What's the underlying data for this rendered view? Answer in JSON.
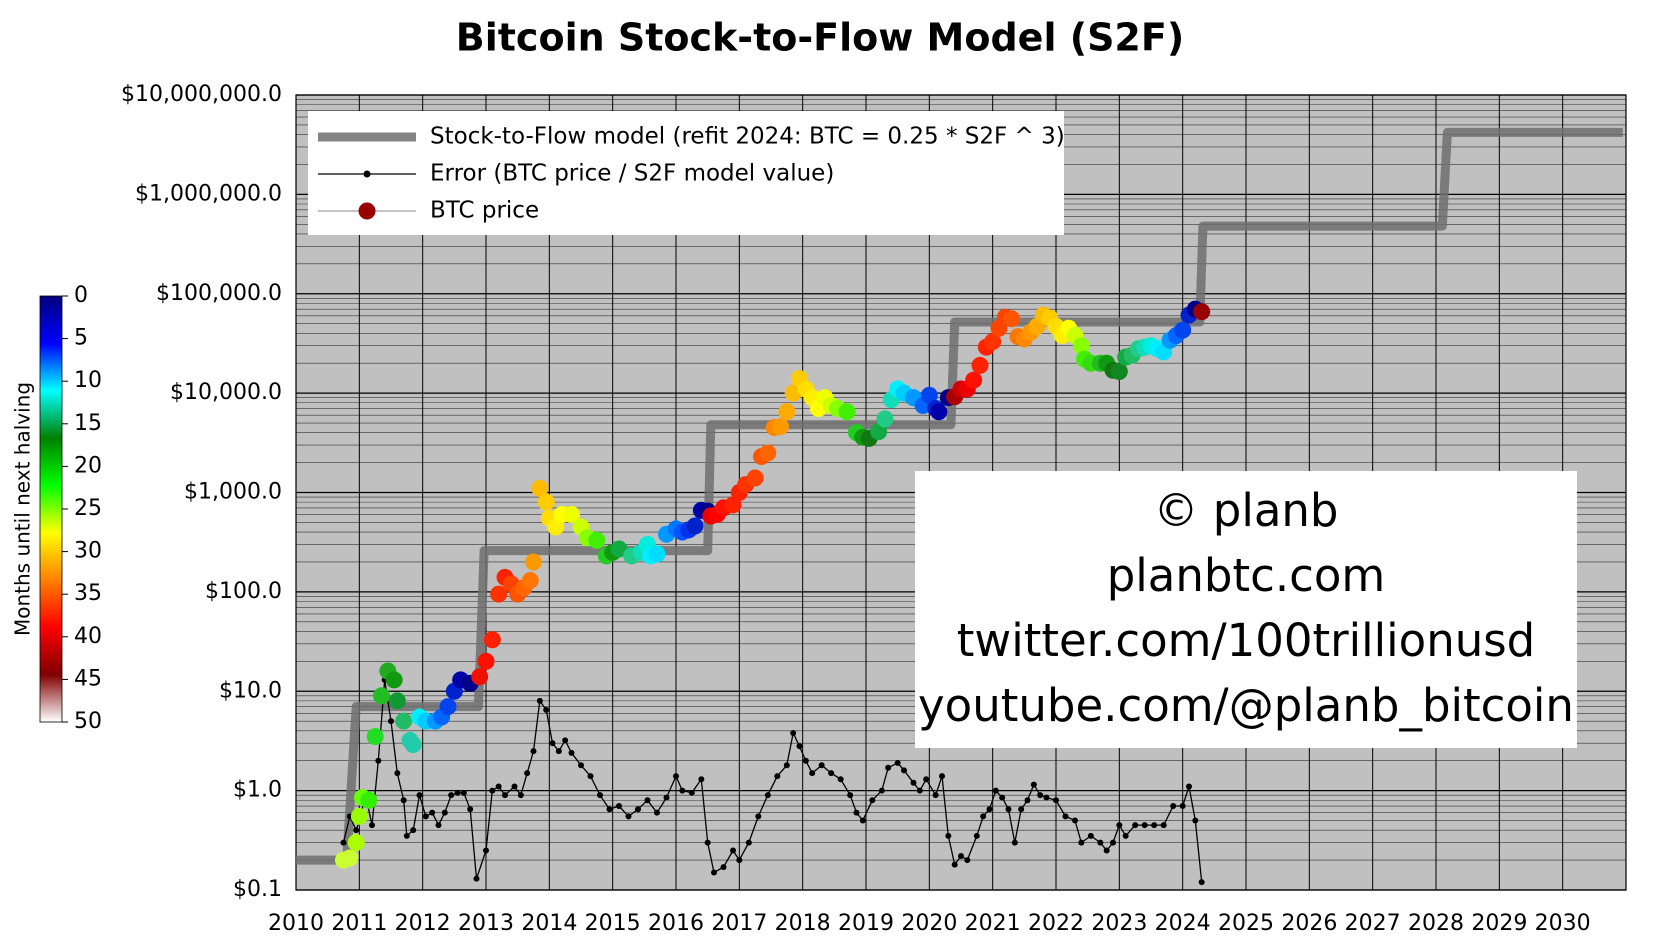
{
  "chart_data": {
    "type": "line",
    "title": "Bitcoin Stock-to-Flow Model (S2F)",
    "log_y": true,
    "grid": true,
    "background": "#c0c0c0",
    "legend": "upper-left",
    "xlim": [
      2010,
      2031
    ],
    "xticks": [
      2010,
      2011,
      2012,
      2013,
      2014,
      2015,
      2016,
      2017,
      2018,
      2019,
      2020,
      2021,
      2022,
      2023,
      2024,
      2025,
      2026,
      2027,
      2028,
      2029,
      2030
    ],
    "ylim": [
      0.1,
      10000000
    ],
    "yticks": [
      {
        "value": 0.1,
        "label": "$0.1"
      },
      {
        "value": 1,
        "label": "$1.0"
      },
      {
        "value": 10,
        "label": "$10.0"
      },
      {
        "value": 100,
        "label": "$100.0"
      },
      {
        "value": 1000,
        "label": "$1,000.0"
      },
      {
        "value": 10000,
        "label": "$10,000.0"
      },
      {
        "value": 100000,
        "label": "$100,000.0"
      },
      {
        "value": 1000000,
        "label": "$1,000,000.0"
      },
      {
        "value": 10000000,
        "label": "$10,000,000.0"
      }
    ],
    "series": [
      {
        "name": "Stock-to-Flow model (refit 2024:  BTC = 0.25 * S2F ^ 3)",
        "type": "line",
        "color": "#6e6e6e",
        "x": [
          2010,
          2010.8,
          2010.95,
          2012.88,
          2012.97,
          2016.5,
          2016.55,
          2020.34,
          2020.4,
          2024.27,
          2024.32,
          2028.1,
          2028.18,
          2030.95
        ],
        "values": [
          0.2,
          0.2,
          7,
          7,
          260,
          260,
          4800,
          4800,
          52000,
          52000,
          480000,
          480000,
          4200000,
          4200000
        ]
      },
      {
        "name": "Error (BTC price / S2F model value)",
        "type": "line",
        "marker": true,
        "color": "#000000",
        "x": [
          2010.75,
          2010.85,
          2010.95,
          2011.0,
          2011.1,
          2011.2,
          2011.3,
          2011.4,
          2011.5,
          2011.6,
          2011.7,
          2011.75,
          2011.85,
          2011.95,
          2012.05,
          2012.15,
          2012.25,
          2012.35,
          2012.45,
          2012.55,
          2012.65,
          2012.75,
          2012.85,
          2013.0,
          2013.1,
          2013.2,
          2013.3,
          2013.45,
          2013.55,
          2013.65,
          2013.75,
          2013.85,
          2013.95,
          2014.05,
          2014.15,
          2014.25,
          2014.35,
          2014.5,
          2014.65,
          2014.8,
          2014.95,
          2015.1,
          2015.25,
          2015.4,
          2015.55,
          2015.7,
          2015.85,
          2016.0,
          2016.1,
          2016.25,
          2016.4,
          2016.5,
          2016.6,
          2016.75,
          2016.9,
          2017.0,
          2017.15,
          2017.3,
          2017.45,
          2017.6,
          2017.75,
          2017.85,
          2017.95,
          2018.05,
          2018.15,
          2018.3,
          2018.45,
          2018.6,
          2018.75,
          2018.85,
          2018.95,
          2019.1,
          2019.25,
          2019.35,
          2019.5,
          2019.6,
          2019.75,
          2019.85,
          2019.95,
          2020.1,
          2020.2,
          2020.3,
          2020.4,
          2020.5,
          2020.6,
          2020.75,
          2020.85,
          2020.95,
          2021.05,
          2021.15,
          2021.25,
          2021.35,
          2021.45,
          2021.55,
          2021.65,
          2021.75,
          2021.85,
          2022.0,
          2022.15,
          2022.3,
          2022.4,
          2022.55,
          2022.7,
          2022.8,
          2022.9,
          2023.0,
          2023.1,
          2023.25,
          2023.4,
          2023.55,
          2023.7,
          2023.85,
          2024.0,
          2024.1,
          2024.2,
          2024.3
        ],
        "values": [
          0.3,
          0.55,
          0.4,
          0.5,
          0.9,
          0.45,
          2,
          13,
          5,
          1.5,
          0.8,
          0.35,
          0.4,
          0.9,
          0.55,
          0.6,
          0.45,
          0.6,
          0.9,
          0.95,
          0.95,
          0.65,
          0.13,
          0.25,
          1.0,
          1.1,
          0.9,
          1.1,
          0.9,
          1.5,
          2.5,
          8,
          6.5,
          3,
          2.5,
          3.2,
          2.4,
          1.8,
          1.4,
          0.9,
          0.65,
          0.7,
          0.55,
          0.65,
          0.8,
          0.6,
          0.85,
          1.4,
          1.0,
          0.95,
          1.3,
          0.3,
          0.15,
          0.17,
          0.25,
          0.2,
          0.3,
          0.55,
          0.9,
          1.4,
          1.8,
          3.8,
          2.8,
          2.0,
          1.5,
          1.8,
          1.5,
          1.3,
          0.9,
          0.6,
          0.5,
          0.8,
          1.0,
          1.7,
          1.9,
          1.6,
          1.2,
          1.0,
          1.3,
          0.9,
          1.4,
          0.35,
          0.18,
          0.22,
          0.2,
          0.35,
          0.55,
          0.65,
          1.0,
          0.85,
          0.65,
          0.3,
          0.65,
          0.8,
          1.15,
          0.9,
          0.85,
          0.8,
          0.55,
          0.5,
          0.3,
          0.35,
          0.3,
          0.25,
          0.3,
          0.45,
          0.35,
          0.45,
          0.45,
          0.45,
          0.45,
          0.7,
          0.7,
          1.1,
          0.5,
          0.12
        ]
      },
      {
        "name": "BTC price",
        "type": "scatter",
        "color": "#990000",
        "x": [
          2010.75,
          2010.85,
          2010.95,
          2011.0,
          2011.05,
          2011.15,
          2011.25,
          2011.35,
          2011.45,
          2011.55,
          2011.6,
          2011.7,
          2011.8,
          2011.85,
          2011.95,
          2012.05,
          2012.2,
          2012.3,
          2012.4,
          2012.5,
          2012.6,
          2012.75,
          2012.9,
          2013.0,
          2013.1,
          2013.2,
          2013.3,
          2013.4,
          2013.5,
          2013.6,
          2013.7,
          2013.75,
          2013.85,
          2013.95,
          2014.0,
          2014.1,
          2014.2,
          2014.35,
          2014.5,
          2014.6,
          2014.75,
          2014.9,
          2015.0,
          2015.1,
          2015.3,
          2015.45,
          2015.55,
          2015.6,
          2015.7,
          2015.85,
          2016.0,
          2016.1,
          2016.2,
          2016.3,
          2016.4,
          2016.5,
          2016.55,
          2016.65,
          2016.75,
          2016.9,
          2017.0,
          2017.1,
          2017.25,
          2017.35,
          2017.45,
          2017.55,
          2017.65,
          2017.75,
          2017.85,
          2017.95,
          2018.05,
          2018.15,
          2018.25,
          2018.35,
          2018.45,
          2018.55,
          2018.7,
          2018.85,
          2018.95,
          2019.05,
          2019.2,
          2019.3,
          2019.4,
          2019.5,
          2019.6,
          2019.75,
          2019.9,
          2020.0,
          2020.1,
          2020.15,
          2020.3,
          2020.4,
          2020.5,
          2020.6,
          2020.7,
          2020.8,
          2020.9,
          2021.0,
          2021.1,
          2021.2,
          2021.3,
          2021.4,
          2021.5,
          2021.6,
          2021.7,
          2021.8,
          2021.9,
          2022.0,
          2022.1,
          2022.2,
          2022.3,
          2022.4,
          2022.45,
          2022.55,
          2022.7,
          2022.8,
          2022.9,
          2023.0,
          2023.1,
          2023.2,
          2023.3,
          2023.4,
          2023.5,
          2023.6,
          2023.7,
          2023.8,
          2023.9,
          2024.0,
          2024.1,
          2024.2,
          2024.3
        ],
        "values": [
          0.2,
          0.21,
          0.3,
          0.55,
          0.85,
          0.8,
          3.5,
          9,
          16,
          13,
          8,
          5,
          3.2,
          2.9,
          5.5,
          5,
          5,
          5.5,
          7,
          10,
          13,
          12,
          14,
          20,
          33,
          95,
          140,
          120,
          95,
          110,
          130,
          200,
          1100,
          800,
          550,
          450,
          600,
          600,
          450,
          350,
          330,
          230,
          250,
          270,
          230,
          250,
          300,
          230,
          240,
          380,
          430,
          400,
          420,
          460,
          660,
          650,
          580,
          600,
          700,
          750,
          1000,
          1200,
          1400,
          2300,
          2500,
          4500,
          4600,
          6500,
          10000,
          14000,
          11000,
          9000,
          7000,
          9000,
          7500,
          7000,
          6500,
          4000,
          3600,
          3500,
          4100,
          5500,
          8600,
          11000,
          10000,
          9000,
          7500,
          9500,
          7000,
          6500,
          9000,
          9200,
          11000,
          11000,
          13500,
          19000,
          29000,
          33000,
          45000,
          58000,
          56000,
          37000,
          35000,
          41000,
          47000,
          61000,
          57000,
          47000,
          38000,
          45000,
          38000,
          30000,
          22000,
          20000,
          20000,
          20000,
          17000,
          16500,
          23000,
          24000,
          28000,
          29000,
          30000,
          28000,
          26000,
          34000,
          38000,
          43000,
          61000,
          70000,
          66000
        ],
        "colors": [
          "#ccff33",
          "#ccff33",
          "#aaff00",
          "#99ff00",
          "#66ff00",
          "#33ee00",
          "#22dd22",
          "#22bb22",
          "#22aa22",
          "#119911",
          "#119933",
          "#22bb66",
          "#22ccaa",
          "#22ccaa",
          "#00eeff",
          "#00ccff",
          "#0099ff",
          "#0066ff",
          "#0044ee",
          "#0022cc",
          "#0000aa",
          "#000088",
          "#ee1100",
          "#ff1100",
          "#ff2200",
          "#ff3300",
          "#ff2200",
          "#ff4400",
          "#ff5500",
          "#ff6600",
          "#ff7700",
          "#ff9900",
          "#ffbb00",
          "#ffcc00",
          "#ffdd00",
          "#ffee00",
          "#ffff00",
          "#eeff00",
          "#ccff00",
          "#88ff00",
          "#44ee00",
          "#22cc22",
          "#119911",
          "#11aa44",
          "#22cc88",
          "#11ddbb",
          "#00eedd",
          "#00eeff",
          "#00ddff",
          "#0099ff",
          "#0077ff",
          "#0055ff",
          "#0033ee",
          "#0022cc",
          "#0000aa",
          "#000088",
          "#ee0000",
          "#ff0000",
          "#ff1100",
          "#ff2200",
          "#ff2200",
          "#ff3300",
          "#ff4400",
          "#ff5500",
          "#ff6600",
          "#ff8800",
          "#ff9900",
          "#ffaa00",
          "#ffbb00",
          "#ffcc00",
          "#ffdd00",
          "#ffee00",
          "#ffff00",
          "#eeff00",
          "#ccff00",
          "#88ff00",
          "#44ee00",
          "#22cc22",
          "#119911",
          "#117711",
          "#11aa44",
          "#22cc88",
          "#11ddbb",
          "#00eeff",
          "#00ccff",
          "#0099ff",
          "#0066ff",
          "#0044ee",
          "#0022cc",
          "#0000aa",
          "#000088",
          "#aa0000",
          "#cc0000",
          "#ee0000",
          "#ff1100",
          "#ff2200",
          "#ff2200",
          "#ff3300",
          "#ff4400",
          "#ff4400",
          "#ff5500",
          "#ff7700",
          "#ff8800",
          "#ff9900",
          "#ffaa00",
          "#ffbb00",
          "#ffcc00",
          "#ffdd00",
          "#ffee00",
          "#ffff00",
          "#ccff00",
          "#88ff00",
          "#44ee00",
          "#33dd11",
          "#22bb22",
          "#119911",
          "#117711",
          "#118822",
          "#11aa44",
          "#22bb66",
          "#22cc88",
          "#11ddbb",
          "#00eedd",
          "#00eeff",
          "#00ddff",
          "#0099ff",
          "#0066ff",
          "#0044ee",
          "#0022cc",
          "#000088",
          "#990000"
        ]
      }
    ],
    "colorbar": {
      "label": "Months until next halving",
      "lim": [
        0,
        50
      ],
      "ticks": [
        0,
        5,
        10,
        15,
        20,
        25,
        30,
        35,
        40,
        45,
        50
      ],
      "colors": [
        "#00007f",
        "#0000ff",
        "#00ffff",
        "#008000",
        "#00ff00",
        "#ffff00",
        "#ff8000",
        "#ff0000",
        "#800000",
        "#ffffff"
      ]
    },
    "annotations": [
      "© planb",
      "planbtc.com",
      "twitter.com/100trillionusd",
      "youtube.com/@planb_bitcoin"
    ]
  }
}
